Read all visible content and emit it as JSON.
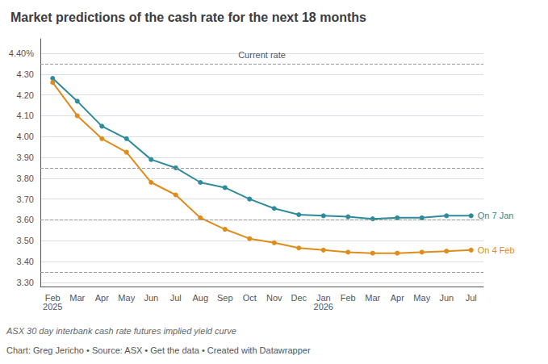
{
  "chart_data": {
    "type": "line",
    "title": "Market predictions of the cash rate for the next 18 months",
    "subtitle": "ASX 30 day interbank cash rate futures implied yield curve",
    "caption": "Chart: Greg Jericho • Source: ASX • Get the data • Created with Datawrapper",
    "categories": [
      "Feb\n2025",
      "Mar",
      "Apr",
      "May",
      "Jun",
      "Jul",
      "Aug",
      "Sep",
      "Oct",
      "Nov",
      "Dec",
      "Jan\n2026",
      "Feb",
      "Mar",
      "Apr",
      "May",
      "Jun",
      "Jul"
    ],
    "series": [
      {
        "name": "On 7 Jan",
        "color": "#2e8b9a",
        "marker": "circle",
        "values": [
          4.28,
          4.17,
          4.05,
          3.99,
          3.89,
          3.85,
          3.78,
          3.755,
          3.7,
          3.655,
          3.625,
          3.62,
          3.615,
          3.605,
          3.61,
          3.61,
          3.62,
          3.62
        ]
      },
      {
        "name": "On 4 Feb",
        "color": "#e08c1a",
        "marker": "circle",
        "values": [
          4.26,
          4.1,
          3.99,
          3.925,
          3.78,
          3.72,
          3.61,
          3.555,
          3.51,
          3.49,
          3.465,
          3.455,
          3.445,
          3.44,
          3.44,
          3.445,
          3.45,
          3.455
        ]
      }
    ],
    "ylim": [
      3.28,
      4.47
    ],
    "yticks": [
      {
        "value": 3.3,
        "label": "3.30"
      },
      {
        "value": 3.4,
        "label": "3.40"
      },
      {
        "value": 3.5,
        "label": "3.50"
      },
      {
        "value": 3.6,
        "label": "3.60"
      },
      {
        "value": 3.7,
        "label": "3.70"
      },
      {
        "value": 3.8,
        "label": "3.80"
      },
      {
        "value": 3.9,
        "label": "3.90"
      },
      {
        "value": 4.0,
        "label": "4.00"
      },
      {
        "value": 4.1,
        "label": "4.10"
      },
      {
        "value": 4.2,
        "label": "4.20"
      },
      {
        "value": 4.3,
        "label": "4.30"
      },
      {
        "value": 4.4,
        "label": "4.40%"
      }
    ],
    "grid": true,
    "reference_lines": [
      4.35,
      3.85,
      3.6,
      3.35
    ],
    "annotations": [
      {
        "text": "Current rate",
        "y": 4.35
      }
    ]
  }
}
